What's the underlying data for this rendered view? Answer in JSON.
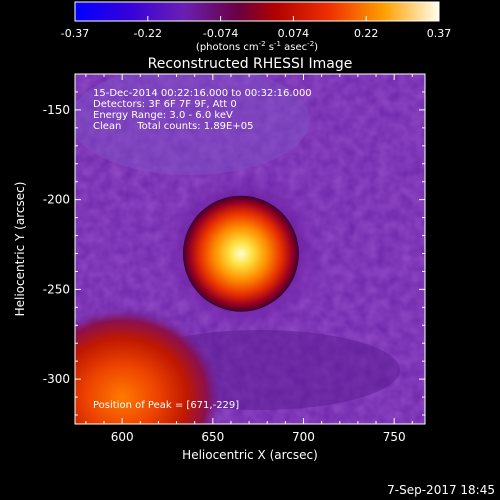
{
  "chart_data": {
    "type": "heatmap",
    "title": "Reconstructed RHESSI Image",
    "xlabel": "Heliocentric X (arcsec)",
    "ylabel": "Heliocentric Y (arcsec)",
    "xlim": [
      574,
      767
    ],
    "ylim": [
      -325,
      -130
    ],
    "x_ticks": [
      600,
      650,
      700,
      750
    ],
    "y_ticks": [
      -150,
      -200,
      -250,
      -300
    ],
    "colorbar": {
      "ticks": [
        "-0.37",
        "-0.22",
        "-0.074",
        "0.074",
        "0.22",
        "0.37"
      ],
      "range": [
        -0.37,
        0.37
      ],
      "unit_prefix": "(photons cm",
      "unit_exp1": "-2",
      "unit_mid1": " s",
      "unit_exp2": "-1",
      "unit_mid2": " asec",
      "unit_exp3": "-2",
      "unit_suffix": ")",
      "colors": [
        "#0000ff",
        "#4400cc",
        "#7a22aa",
        "#a00a00",
        "#e02000",
        "#ff7a00",
        "#ffcc00",
        "#ffffe0"
      ]
    },
    "annotations": [
      "15-Dec-2014 00:22:16.000 to 00:32:16.000",
      "Detectors: 3F 6F 7F 9F, Att 0",
      "Energy Range: 3.0 - 6.0 keV",
      "Clean     Total counts: 1.89E+05"
    ],
    "peak_label": "Position of Peak = [671,-229]",
    "sources": [
      {
        "x": 671,
        "y": -229,
        "peak": 0.37
      },
      {
        "x": 600,
        "y": -310,
        "peak": 0.2
      }
    ]
  },
  "footer_date": "7-Sep-2017 18:45"
}
